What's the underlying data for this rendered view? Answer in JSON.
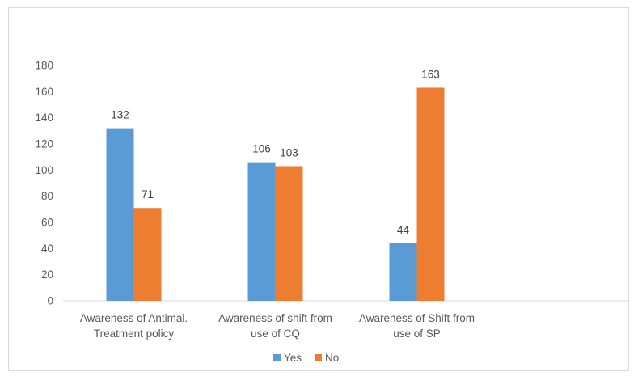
{
  "chart_data": {
    "type": "bar",
    "title": "",
    "xlabel": "",
    "ylabel": "",
    "categories": [
      [
        "Awareness of Antimal.",
        "Treatment policy"
      ],
      [
        "Awareness of shift from",
        "use of CQ"
      ],
      [
        "Awareness of Shift from",
        "use of SP"
      ]
    ],
    "series": [
      {
        "name": "Yes",
        "color": "#5b9bd5",
        "values": [
          132,
          106,
          44
        ]
      },
      {
        "name": "No",
        "color": "#ed7d31",
        "values": [
          71,
          103,
          163
        ]
      }
    ],
    "ylim": [
      0,
      180
    ],
    "yticks": [
      0,
      20,
      40,
      60,
      80,
      100,
      120,
      140,
      160,
      180
    ],
    "grid": false,
    "data_labels": true,
    "legend": "bottom-center"
  }
}
